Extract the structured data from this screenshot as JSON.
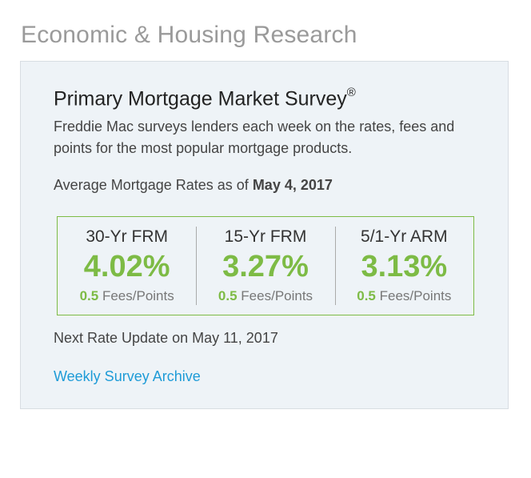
{
  "section_title": "Economic & Housing Research",
  "card": {
    "title": "Primary Mortgage Market Survey",
    "title_mark": "®",
    "description": "Freddie Mac surveys lenders each week on the rates, fees and points for the most popular mortgage products.",
    "as_of_prefix": "Average Mortgage Rates as of ",
    "as_of_date": "May 4, 2017",
    "rates": [
      {
        "name": "30-Yr FRM",
        "value": "4.02%",
        "fees": "0.5",
        "fees_label": "Fees/Points"
      },
      {
        "name": "15-Yr FRM",
        "value": "3.27%",
        "fees": "0.5",
        "fees_label": "Fees/Points"
      },
      {
        "name": "5/1-Yr ARM",
        "value": "3.13%",
        "fees": "0.5",
        "fees_label": "Fees/Points"
      }
    ],
    "next_update": "Next Rate Update on May 11, 2017",
    "archive_link": "Weekly Survey Archive"
  },
  "colors": {
    "accent_green": "#7dbb45",
    "link_blue": "#1e9bd7",
    "card_background": "#eef3f7",
    "section_title_gray": "#9a9a9a"
  }
}
